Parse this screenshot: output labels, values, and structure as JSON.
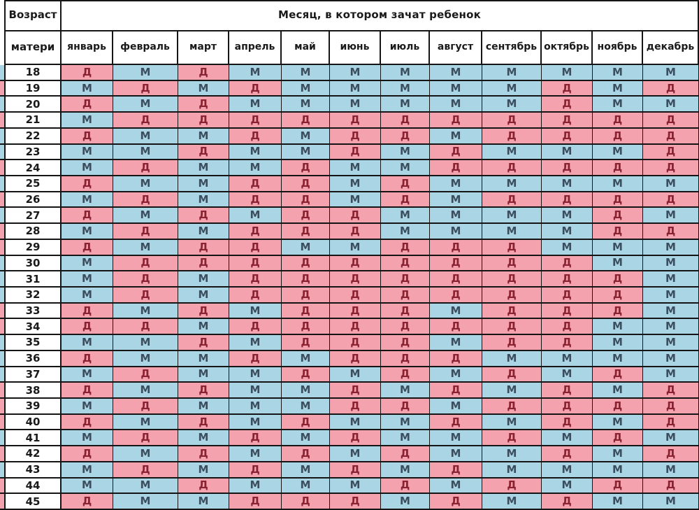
{
  "colors": {
    "girl_bg": "#F3A2AE",
    "boy_bg": "#AAD5E5",
    "girl_text": "#8B2232",
    "boy_text": "#3C4E5E",
    "grid_border": "#151515",
    "header_text": "#1A1A1A",
    "age_text": "#1A1A1A",
    "background": "#FFFFFF"
  },
  "chart_data": {
    "type": "table",
    "title": "Месяц, в котором зачат ребенок",
    "corner_header": [
      "Возраст",
      "матери"
    ],
    "columns": [
      "январь",
      "февраль",
      "март",
      "апрель",
      "май",
      "июнь",
      "июль",
      "август",
      "сентябрь",
      "октябрь",
      "ноябрь",
      "декабрь"
    ],
    "cell_values_meaning": {
      "Д": "pink cell",
      "М": "blue cell"
    },
    "rows": [
      {
        "age": "18",
        "cells": [
          "Д",
          "М",
          "Д",
          "М",
          "М",
          "М",
          "М",
          "М",
          "М",
          "М",
          "М",
          "М"
        ]
      },
      {
        "age": "19",
        "cells": [
          "М",
          "Д",
          "М",
          "Д",
          "М",
          "М",
          "М",
          "М",
          "М",
          "Д",
          "М",
          "Д"
        ]
      },
      {
        "age": "20",
        "cells": [
          "Д",
          "М",
          "Д",
          "М",
          "М",
          "М",
          "М",
          "М",
          "М",
          "Д",
          "М",
          "М"
        ]
      },
      {
        "age": "21",
        "cells": [
          "М",
          "Д",
          "Д",
          "Д",
          "Д",
          "Д",
          "Д",
          "Д",
          "Д",
          "Д",
          "Д",
          "Д"
        ]
      },
      {
        "age": "22",
        "cells": [
          "Д",
          "М",
          "М",
          "Д",
          "М",
          "Д",
          "Д",
          "М",
          "Д",
          "Д",
          "Д",
          "Д"
        ]
      },
      {
        "age": "23",
        "cells": [
          "М",
          "М",
          "Д",
          "М",
          "М",
          "Д",
          "М",
          "Д",
          "М",
          "М",
          "М",
          "Д"
        ]
      },
      {
        "age": "24",
        "cells": [
          "М",
          "Д",
          "М",
          "М",
          "Д",
          "М",
          "М",
          "Д",
          "Д",
          "Д",
          "Д",
          "Д"
        ]
      },
      {
        "age": "25",
        "cells": [
          "Д",
          "М",
          "М",
          "Д",
          "Д",
          "М",
          "Д",
          "М",
          "М",
          "М",
          "М",
          "М"
        ]
      },
      {
        "age": "26",
        "cells": [
          "М",
          "Д",
          "М",
          "Д",
          "Д",
          "М",
          "Д",
          "М",
          "Д",
          "Д",
          "Д",
          "Д"
        ]
      },
      {
        "age": "27",
        "cells": [
          "Д",
          "М",
          "Д",
          "М",
          "Д",
          "Д",
          "М",
          "М",
          "М",
          "М",
          "Д",
          "М"
        ]
      },
      {
        "age": "28",
        "cells": [
          "М",
          "Д",
          "М",
          "Д",
          "Д",
          "Д",
          "М",
          "М",
          "М",
          "М",
          "Д",
          "Д"
        ]
      },
      {
        "age": "29",
        "cells": [
          "Д",
          "М",
          "Д",
          "Д",
          "М",
          "М",
          "Д",
          "Д",
          "Д",
          "М",
          "М",
          "М"
        ]
      },
      {
        "age": "30",
        "cells": [
          "М",
          "Д",
          "Д",
          "Д",
          "Д",
          "Д",
          "Д",
          "Д",
          "Д",
          "Д",
          "М",
          "М"
        ]
      },
      {
        "age": "31",
        "cells": [
          "М",
          "Д",
          "М",
          "Д",
          "Д",
          "Д",
          "Д",
          "Д",
          "Д",
          "Д",
          "Д",
          "М"
        ]
      },
      {
        "age": "32",
        "cells": [
          "М",
          "Д",
          "М",
          "Д",
          "Д",
          "Д",
          "Д",
          "Д",
          "Д",
          "Д",
          "Д",
          "М"
        ]
      },
      {
        "age": "33",
        "cells": [
          "Д",
          "М",
          "Д",
          "М",
          "Д",
          "Д",
          "Д",
          "М",
          "Д",
          "Д",
          "Д",
          "М"
        ]
      },
      {
        "age": "34",
        "cells": [
          "Д",
          "Д",
          "М",
          "Д",
          "Д",
          "Д",
          "Д",
          "Д",
          "Д",
          "Д",
          "М",
          "М"
        ]
      },
      {
        "age": "35",
        "cells": [
          "М",
          "М",
          "Д",
          "М",
          "Д",
          "Д",
          "Д",
          "М",
          "Д",
          "Д",
          "М",
          "М"
        ]
      },
      {
        "age": "36",
        "cells": [
          "Д",
          "М",
          "М",
          "Д",
          "М",
          "Д",
          "Д",
          "Д",
          "М",
          "М",
          "М",
          "М"
        ]
      },
      {
        "age": "37",
        "cells": [
          "М",
          "Д",
          "М",
          "М",
          "Д",
          "М",
          "Д",
          "М",
          "Д",
          "М",
          "Д",
          "М"
        ]
      },
      {
        "age": "38",
        "cells": [
          "Д",
          "М",
          "Д",
          "М",
          "М",
          "Д",
          "М",
          "Д",
          "М",
          "Д",
          "М",
          "Д"
        ]
      },
      {
        "age": "39",
        "cells": [
          "М",
          "Д",
          "М",
          "М",
          "М",
          "Д",
          "Д",
          "М",
          "Д",
          "Д",
          "Д",
          "Д"
        ]
      },
      {
        "age": "40",
        "cells": [
          "Д",
          "М",
          "Д",
          "М",
          "Д",
          "М",
          "М",
          "Д",
          "М",
          "Д",
          "М",
          "Д"
        ]
      },
      {
        "age": "41",
        "cells": [
          "М",
          "Д",
          "М",
          "Д",
          "М",
          "Д",
          "М",
          "М",
          "Д",
          "М",
          "Д",
          "М"
        ]
      },
      {
        "age": "42",
        "cells": [
          "Д",
          "М",
          "Д",
          "М",
          "Д",
          "М",
          "Д",
          "М",
          "М",
          "Д",
          "М",
          "Д"
        ]
      },
      {
        "age": "43",
        "cells": [
          "М",
          "Д",
          "М",
          "Д",
          "М",
          "Д",
          "М",
          "Д",
          "М",
          "М",
          "М",
          "М"
        ]
      },
      {
        "age": "44",
        "cells": [
          "М",
          "М",
          "Д",
          "М",
          "М",
          "М",
          "Д",
          "М",
          "Д",
          "М",
          "Д",
          "Д"
        ]
      },
      {
        "age": "45",
        "cells": [
          "Д",
          "М",
          "М",
          "Д",
          "Д",
          "Д",
          "М",
          "Д",
          "М",
          "Д",
          "М",
          "М"
        ]
      }
    ],
    "left_edge_strip": [
      "b",
      "g",
      "b",
      "g",
      "b",
      "b",
      "g",
      "b",
      "g",
      "b",
      "g",
      "g",
      "b",
      "b",
      "b",
      "g",
      "g",
      "b",
      "b",
      "b",
      "g",
      "g",
      "g",
      "b",
      "g",
      "b",
      "g",
      "g"
    ]
  }
}
